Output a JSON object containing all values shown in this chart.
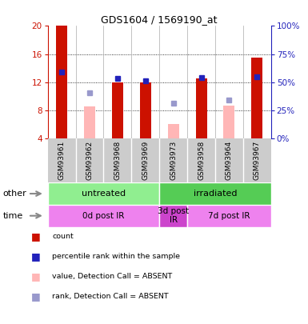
{
  "title": "GDS1604 / 1569190_at",
  "samples": [
    "GSM93961",
    "GSM93962",
    "GSM93968",
    "GSM93969",
    "GSM93973",
    "GSM93958",
    "GSM93964",
    "GSM93967"
  ],
  "ylim_left": [
    4,
    20
  ],
  "ylim_right": [
    0,
    100
  ],
  "yticks_left": [
    4,
    8,
    12,
    16,
    20
  ],
  "yticks_right": [
    0,
    25,
    50,
    75,
    100
  ],
  "red_bars": [
    20,
    null,
    12,
    12,
    null,
    12.5,
    null,
    15.5
  ],
  "pink_bars": [
    null,
    8.5,
    null,
    null,
    6.0,
    null,
    8.7,
    null
  ],
  "blue_squares": [
    13.5,
    null,
    12.5,
    12.2,
    null,
    12.7,
    null,
    12.8
  ],
  "light_blue_squares": [
    null,
    10.5,
    null,
    null,
    9.0,
    null,
    9.5,
    null
  ],
  "group_other": [
    {
      "label": "untreated",
      "start": 0,
      "end": 4,
      "color": "#90EE90"
    },
    {
      "label": "irradiated",
      "start": 4,
      "end": 8,
      "color": "#55CC55"
    }
  ],
  "group_time": [
    {
      "label": "0d post IR",
      "start": 0,
      "end": 4,
      "color": "#EE82EE"
    },
    {
      "label": "3d post\nIR",
      "start": 4,
      "end": 5,
      "color": "#CC44CC"
    },
    {
      "label": "7d post IR",
      "start": 5,
      "end": 8,
      "color": "#EE82EE"
    }
  ],
  "bar_width": 0.4,
  "red_color": "#CC1100",
  "pink_color": "#FFB6B6",
  "blue_color": "#2222BB",
  "light_blue_color": "#9999CC",
  "axis_left_color": "#CC1100",
  "axis_right_color": "#2222BB",
  "sample_bg": "#CCCCCC",
  "legend_items": [
    {
      "color": "#CC1100",
      "label": "count"
    },
    {
      "color": "#2222BB",
      "label": "percentile rank within the sample"
    },
    {
      "color": "#FFB6B6",
      "label": "value, Detection Call = ABSENT"
    },
    {
      "color": "#9999CC",
      "label": "rank, Detection Call = ABSENT"
    }
  ]
}
